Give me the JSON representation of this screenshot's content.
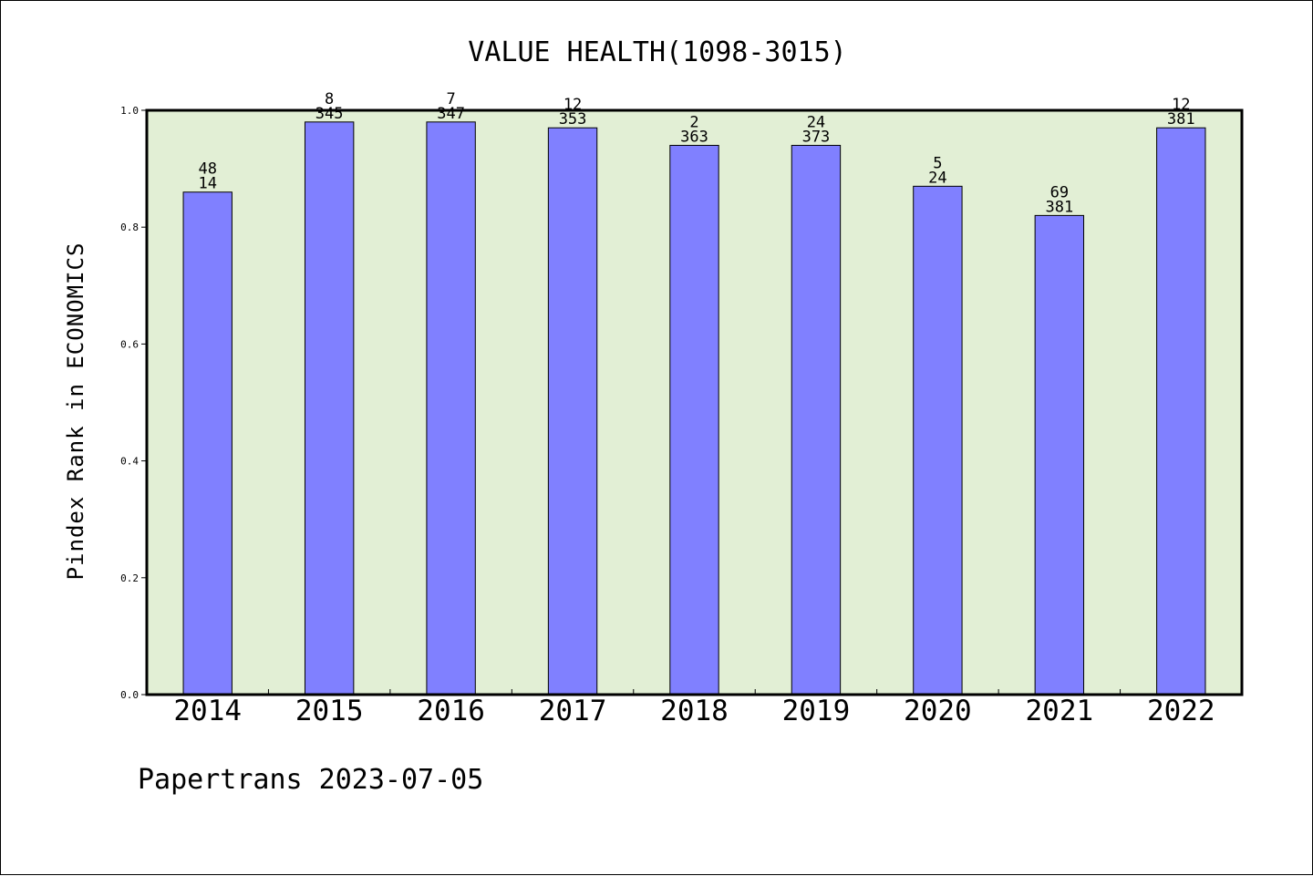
{
  "chart_data": {
    "type": "bar",
    "title": "VALUE HEALTH(1098-3015)",
    "ylabel": "Pindex Rank in ECONOMICS",
    "xlabel": "",
    "categories": [
      "2014",
      "2015",
      "2016",
      "2017",
      "2018",
      "2019",
      "2020",
      "2021",
      "2022"
    ],
    "values": [
      0.86,
      0.98,
      0.98,
      0.97,
      0.94,
      0.94,
      0.87,
      0.82,
      0.97
    ],
    "label_top": [
      "48",
      "8",
      "7",
      "12",
      "2",
      "24",
      "5",
      "69",
      "12"
    ],
    "label_bottom": [
      "14",
      "345",
      "347",
      "353",
      "363",
      "373",
      "24",
      "381",
      "381"
    ],
    "ylim": [
      0,
      1.0
    ],
    "yticks": [
      "0.0",
      "0.2",
      "0.4",
      "0.6",
      "0.8",
      "1.0"
    ],
    "grid": false,
    "colors": {
      "bar": "#8080ff",
      "plot_bg": "#e2efd5"
    }
  },
  "footer": {
    "text": "Papertrans 2023-07-05"
  }
}
